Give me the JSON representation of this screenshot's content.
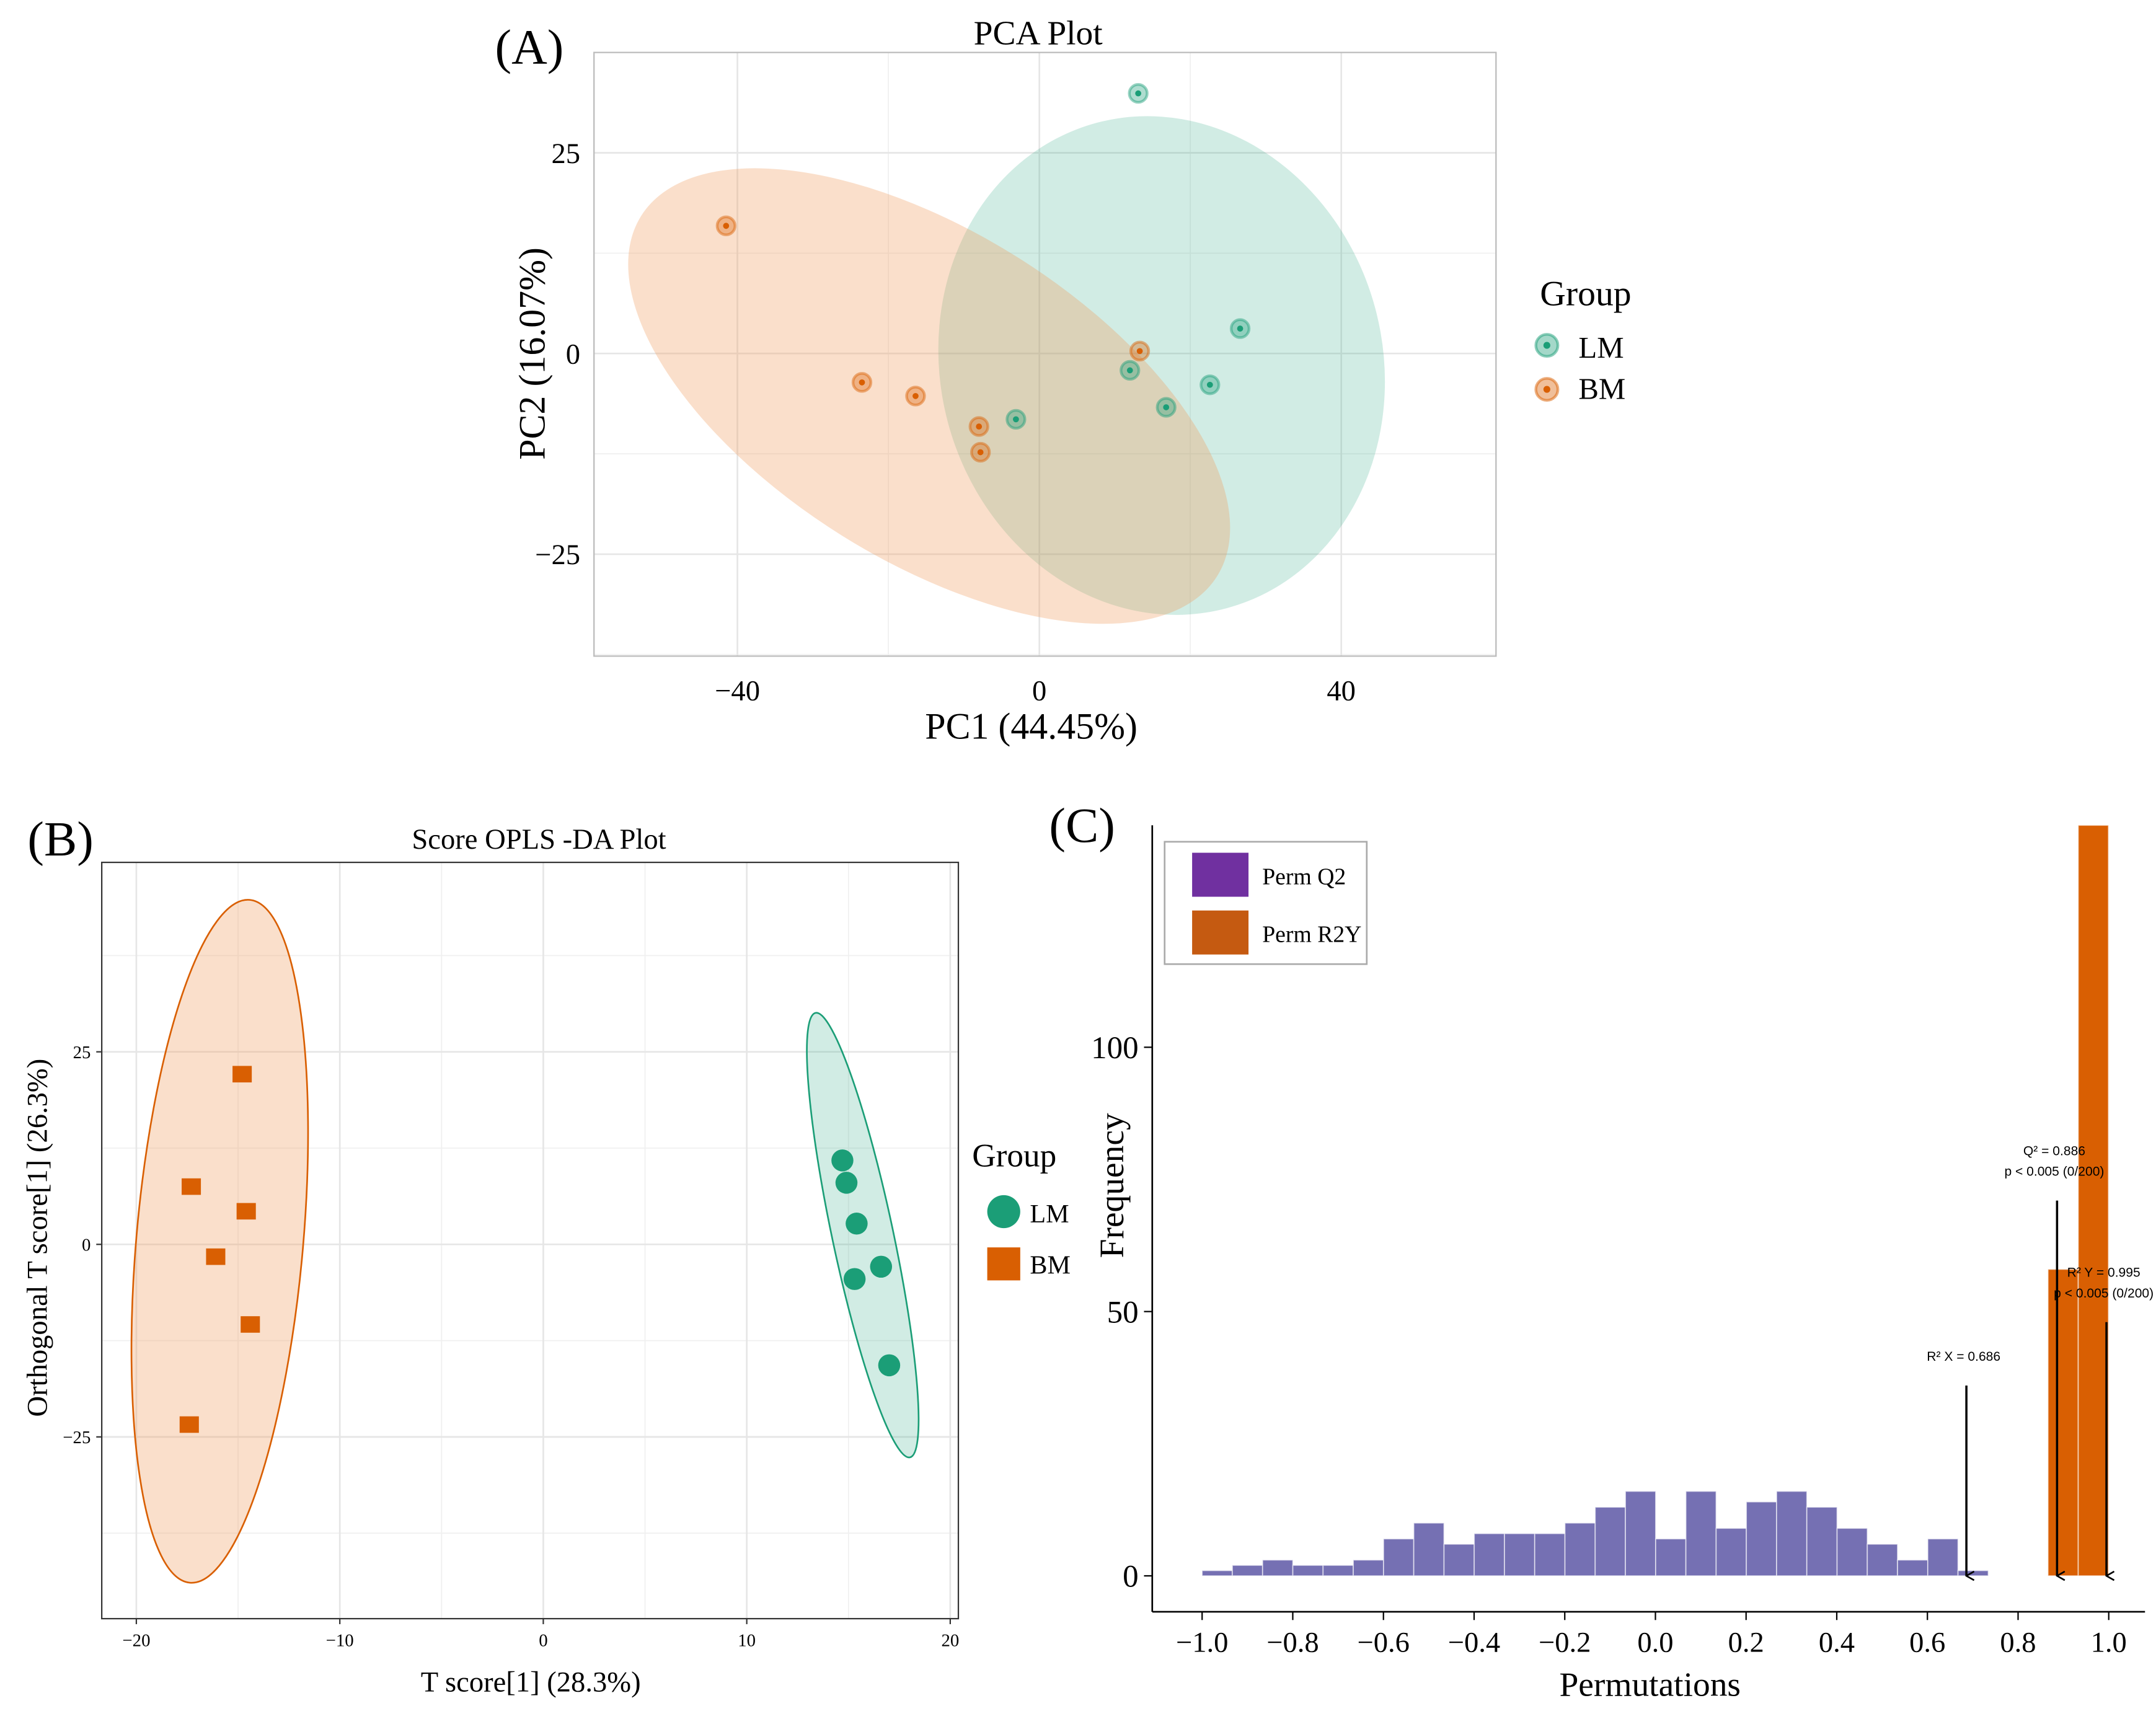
{
  "chart_data": [
    {
      "panel_label": "(A)",
      "type": "scatter",
      "title": "PCA Plot",
      "xlabel": "PC1 (44.45%)",
      "ylabel": "PC2 (16.07%)",
      "xlim": [
        -59,
        60.5
      ],
      "ylim": [
        -37.7,
        37.5
      ],
      "xticks": [
        -40,
        0,
        40
      ],
      "xtick_labels": [
        "−40",
        "0",
        "40"
      ],
      "yticks": [
        -25,
        0,
        25
      ],
      "ytick_labels": [
        "−25",
        "0",
        "25"
      ],
      "grid": true,
      "legend": {
        "title": "Group",
        "position": "right",
        "entries": [
          "LM",
          "BM"
        ]
      },
      "series": [
        {
          "name": "LM",
          "color": "#1B9E77",
          "points": [
            [
              13.1,
              32.4
            ],
            [
              26.6,
              3.1
            ],
            [
              22.6,
              -3.9
            ],
            [
              12.0,
              -2.1
            ],
            [
              16.8,
              -6.7
            ],
            [
              -3.1,
              -8.2
            ]
          ],
          "ellipse": {
            "center": [
              16.2,
              -1.5
            ],
            "rx": 29.3,
            "ry": 31.3,
            "angle": -15
          }
        },
        {
          "name": "BM",
          "color": "#D95F02",
          "points": [
            [
              -41.5,
              15.9
            ],
            [
              -23.5,
              -3.6
            ],
            [
              -16.4,
              -5.3
            ],
            [
              -8.0,
              -9.1
            ],
            [
              -7.8,
              -12.3
            ],
            [
              13.3,
              0.3
            ]
          ],
          "ellipse": {
            "center": [
              -14.6,
              -5.3
            ],
            "rx": 45.0,
            "ry": 20.5,
            "angle": 32
          }
        }
      ]
    },
    {
      "panel_label": "(B)",
      "type": "scatter",
      "title": "Score OPLS -DA Plot",
      "xlabel": "T score[1] (28.3%)",
      "ylabel": "Orthogonal T score[1] (26.3%)",
      "xlim": [
        -21.7,
        20.4
      ],
      "ylim": [
        -48.6,
        49.6
      ],
      "xticks": [
        -20,
        -10,
        0,
        10,
        20
      ],
      "xtick_labels": [
        "−20",
        "−10",
        "0",
        "10",
        "20"
      ],
      "yticks": [
        -25,
        0,
        25
      ],
      "ytick_labels": [
        "−25",
        "0",
        "25"
      ],
      "grid": true,
      "legend": {
        "title": "Group",
        "position": "right",
        "entries": [
          "LM",
          "BM"
        ]
      },
      "series": [
        {
          "name": "LM",
          "color": "#1B9E77",
          "marker": "circle",
          "points": [
            [
              14.7,
              10.9
            ],
            [
              14.9,
              8.0
            ],
            [
              15.4,
              2.7
            ],
            [
              16.6,
              -2.9
            ],
            [
              15.3,
              -4.5
            ],
            [
              17.0,
              -15.7
            ]
          ],
          "ellipse": {
            "center": [
              15.7,
              1.2
            ],
            "rx": 1.5,
            "ry": 29.5,
            "angle": -12
          }
        },
        {
          "name": "BM",
          "color": "#D95F02",
          "marker": "square",
          "points": [
            [
              -14.8,
              22.1
            ],
            [
              -17.3,
              7.5
            ],
            [
              -14.6,
              4.3
            ],
            [
              -16.1,
              -1.6
            ],
            [
              -14.4,
              -10.4
            ],
            [
              -17.4,
              -23.4
            ]
          ],
          "ellipse": {
            "center": [
              -15.9,
              0.4
            ],
            "rx": 4.1,
            "ry": 44.5,
            "angle": 5
          }
        }
      ]
    },
    {
      "panel_label": "(C)",
      "type": "bar",
      "subtype": "histogram",
      "xlabel": "Permutations",
      "ylabel": "Frequency",
      "xlim": [
        -1.11,
        1.08
      ],
      "ylim": [
        -6.8,
        142
      ],
      "xticks": [
        -1.0,
        -0.8,
        -0.6,
        -0.4,
        -0.2,
        0.0,
        0.2,
        0.4,
        0.6,
        0.8,
        1.0
      ],
      "xtick_labels": [
        "−1.0",
        "−0.8",
        "−0.6",
        "−0.4",
        "−0.2",
        "0.0",
        "0.2",
        "0.4",
        "0.6",
        "0.8",
        "1.0"
      ],
      "yticks": [
        0,
        50,
        100
      ],
      "ytick_labels": [
        "0",
        "50",
        "100"
      ],
      "grid": false,
      "legend": {
        "position": "top-left",
        "entries": [
          {
            "label": "Perm Q2",
            "color": "#7030A0"
          },
          {
            "label": "Perm R2Y",
            "color": "#C55A11"
          }
        ]
      },
      "series": [
        {
          "name": "Perm Q2",
          "color": "#7570B3",
          "bin_start": -1.0,
          "bin_width": 0.0667,
          "counts": [
            1,
            2,
            3,
            2,
            2,
            3,
            7,
            10,
            6,
            8,
            8,
            8,
            10,
            13,
            16,
            7,
            16,
            9,
            14,
            16,
            13,
            9,
            6,
            3,
            7,
            1
          ]
        },
        {
          "name": "Perm R2Y",
          "color": "#D95F02",
          "bin_start": 0.866,
          "bin_width": 0.0667,
          "counts": [
            58,
            142
          ]
        }
      ],
      "annotations": [
        {
          "x": 0.686,
          "lines": [
            "R² X = 0.686"
          ],
          "arrow_top": 36
        },
        {
          "x": 0.886,
          "lines": [
            "Q² = 0.886",
            "p < 0.005 (0/200)"
          ],
          "arrow_top": 71
        },
        {
          "x": 0.995,
          "lines": [
            "R² Y = 0.995",
            "p < 0.005 (0/200)"
          ],
          "arrow_top": 48
        }
      ]
    }
  ]
}
